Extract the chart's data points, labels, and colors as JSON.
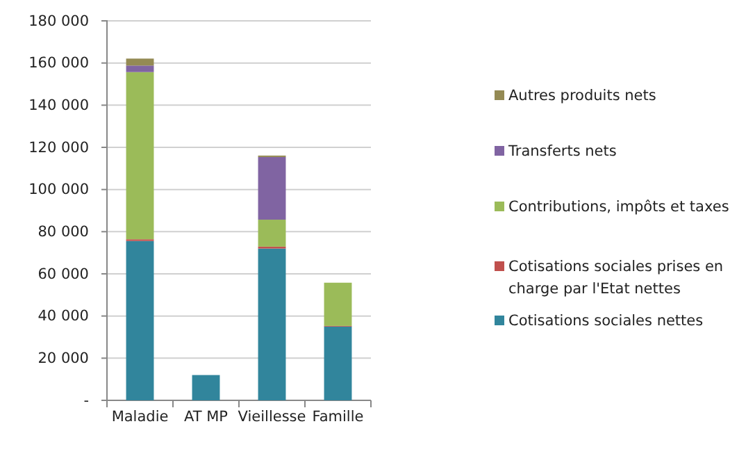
{
  "chart_data": {
    "type": "bar",
    "stacked": true,
    "categories": [
      "Maladie",
      "AT MP",
      "Vieillesse",
      "Famille"
    ],
    "series": [
      {
        "name": "Cotisations sociales nettes",
        "color": "#31859c",
        "values": [
          75600,
          12000,
          72000,
          35000
        ]
      },
      {
        "name": "Cotisations sociales prises en charge par l'Etat nettes",
        "color": "#c0504d",
        "values": [
          800,
          0,
          900,
          300
        ]
      },
      {
        "name": "Contributions, impôts et taxes",
        "color": "#9bbb59",
        "values": [
          79300,
          0,
          12800,
          20500
        ]
      },
      {
        "name": "Transferts nets",
        "color": "#8064a2",
        "values": [
          3100,
          0,
          29700,
          0
        ]
      },
      {
        "name": "Autres produits nets",
        "color": "#948a54",
        "values": [
          3300,
          0,
          700,
          0
        ]
      }
    ],
    "ylim": [
      0,
      180000
    ],
    "yticks": [
      {
        "value": 0,
        "label": "-"
      },
      {
        "value": 20000,
        "label": "20 000"
      },
      {
        "value": 40000,
        "label": "40 000"
      },
      {
        "value": 60000,
        "label": "60 000"
      },
      {
        "value": 80000,
        "label": "80 000"
      },
      {
        "value": 100000,
        "label": "100 000"
      },
      {
        "value": 120000,
        "label": "120 000"
      },
      {
        "value": 140000,
        "label": "140 000"
      },
      {
        "value": 160000,
        "label": "160 000"
      },
      {
        "value": 180000,
        "label": "180 000"
      }
    ],
    "grid": "y",
    "legend": "right"
  }
}
